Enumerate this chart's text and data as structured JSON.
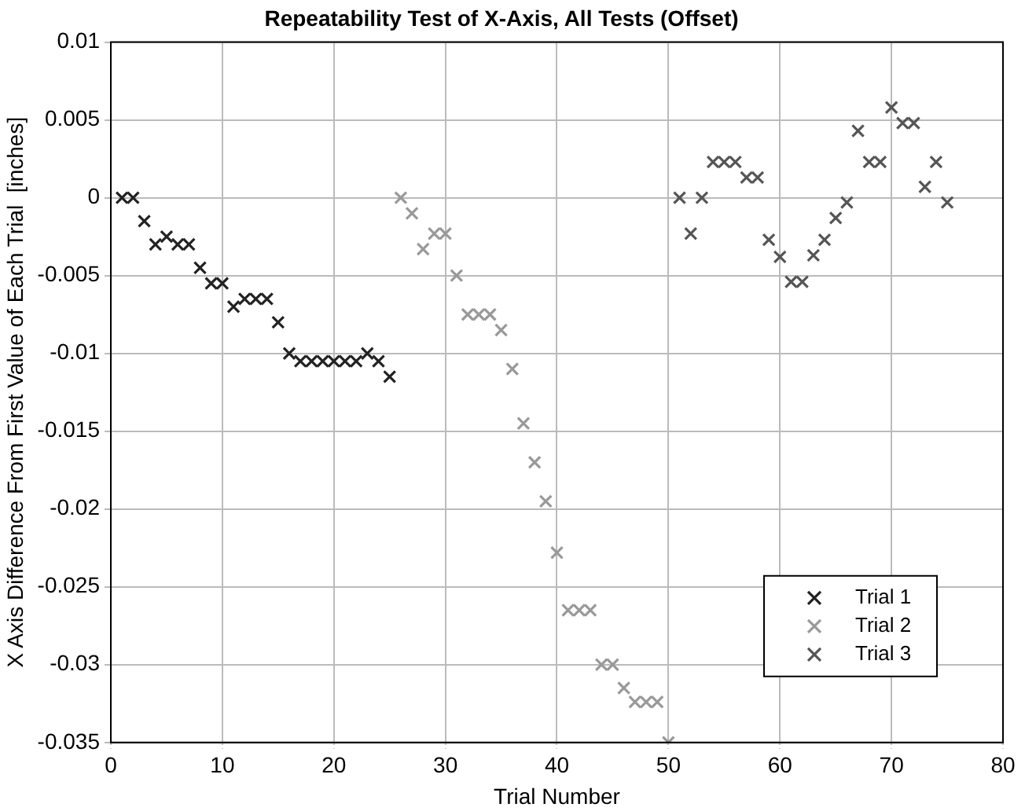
{
  "chart_data": {
    "type": "scatter",
    "title": "Repeatability Test of X-Axis, All Tests (Offset)",
    "xlabel": "Trial Number",
    "ylabel": "X Axis Difference From First Value of Each Trial  [inches]",
    "xlim": [
      0,
      80
    ],
    "xticks": [
      0,
      10,
      20,
      30,
      40,
      50,
      60,
      70,
      80
    ],
    "ylim": [
      -0.035,
      0.01
    ],
    "yticks": [
      -0.035,
      -0.03,
      -0.025,
      -0.02,
      -0.015,
      -0.01,
      -0.005,
      0,
      0.005,
      0.01
    ],
    "grid": true,
    "legend": "bottom right",
    "marker": "cross",
    "series": [
      {
        "name": "Trial 1",
        "color": "#222222",
        "x": [
          1,
          2,
          3,
          4,
          5,
          6,
          7,
          8,
          9,
          10,
          11,
          12,
          13,
          14,
          15,
          16,
          17,
          18,
          19,
          20,
          21,
          22,
          23,
          24,
          25
        ],
        "values": [
          0,
          0,
          -0.0015,
          -0.003,
          -0.0025,
          -0.003,
          -0.003,
          -0.0045,
          -0.0055,
          -0.0055,
          -0.007,
          -0.0065,
          -0.0065,
          -0.0065,
          -0.008,
          -0.01,
          -0.0105,
          -0.0105,
          -0.0105,
          -0.0105,
          -0.0105,
          -0.0105,
          -0.01,
          -0.0105,
          -0.0115
        ]
      },
      {
        "name": "Trial 2",
        "color": "#999999",
        "x": [
          26,
          27,
          28,
          29,
          30,
          31,
          32,
          33,
          34,
          35,
          36,
          37,
          38,
          39,
          40,
          41,
          42,
          43,
          44,
          45,
          46,
          47,
          48,
          49,
          50
        ],
        "values": [
          0,
          -0.001,
          -0.0033,
          -0.0023,
          -0.0023,
          -0.005,
          -0.0075,
          -0.0075,
          -0.0075,
          -0.0085,
          -0.011,
          -0.0145,
          -0.017,
          -0.0195,
          -0.0228,
          -0.0265,
          -0.0265,
          -0.0265,
          -0.03,
          -0.03,
          -0.0315,
          -0.0324,
          -0.0324,
          -0.0324,
          -0.035
        ]
      },
      {
        "name": "Trial 3",
        "color": "#555555",
        "x": [
          51,
          52,
          53,
          54,
          55,
          56,
          57,
          58,
          59,
          60,
          61,
          62,
          63,
          64,
          65,
          66,
          67,
          68,
          69,
          70,
          71,
          72,
          73,
          74,
          75
        ],
        "values": [
          0,
          -0.0023,
          0,
          0.0023,
          0.0023,
          0.0023,
          0.0013,
          0.0013,
          -0.0027,
          -0.0038,
          -0.0054,
          -0.0054,
          -0.0037,
          -0.0027,
          -0.0013,
          -0.0003,
          0.0043,
          0.0023,
          0.0023,
          0.0058,
          0.0048,
          0.0048,
          0.0007,
          0.0023,
          -0.0003
        ]
      }
    ]
  }
}
